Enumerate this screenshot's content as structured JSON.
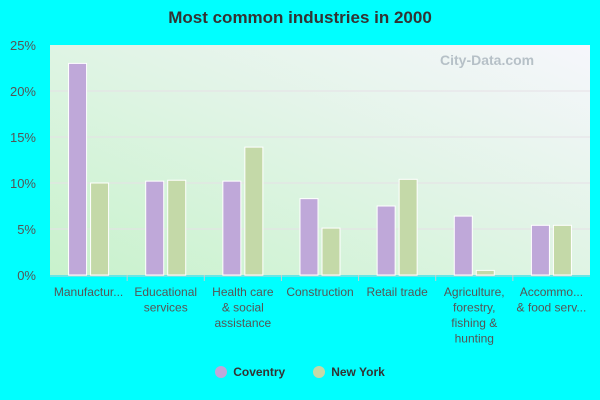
{
  "chart_data": {
    "type": "bar",
    "title": "Most common industries in 2000",
    "categories": [
      "Manufactur...",
      "Educational services",
      "Health care & social assistance",
      "Construction",
      "Retail trade",
      "Agriculture, forestry, fishing & hunting",
      "Accommo... & food serv..."
    ],
    "category_lines": [
      [
        "Manufactur..."
      ],
      [
        "Educational",
        "services"
      ],
      [
        "Health care",
        "& social",
        "assistance"
      ],
      [
        "Construction"
      ],
      [
        "Retail trade"
      ],
      [
        "Agriculture,",
        "forestry,",
        "fishing &",
        "hunting"
      ],
      [
        "Accommo...",
        "& food serv..."
      ]
    ],
    "series": [
      {
        "name": "Coventry",
        "color": "#bfa8d9",
        "values": [
          23.0,
          10.2,
          10.2,
          8.3,
          7.5,
          6.4,
          5.4
        ]
      },
      {
        "name": "New York",
        "color": "#c4d9a8",
        "values": [
          10.0,
          10.3,
          13.9,
          5.1,
          10.4,
          0.5,
          5.4
        ]
      }
    ],
    "ylim": [
      0,
      25
    ],
    "yticks": [
      0,
      5,
      10,
      15,
      20,
      25
    ],
    "ytick_labels": [
      "0%",
      "5%",
      "10%",
      "15%",
      "20%",
      "25%"
    ],
    "grid": true,
    "legend_placement": "bottom"
  },
  "watermark": "City-Data.com"
}
